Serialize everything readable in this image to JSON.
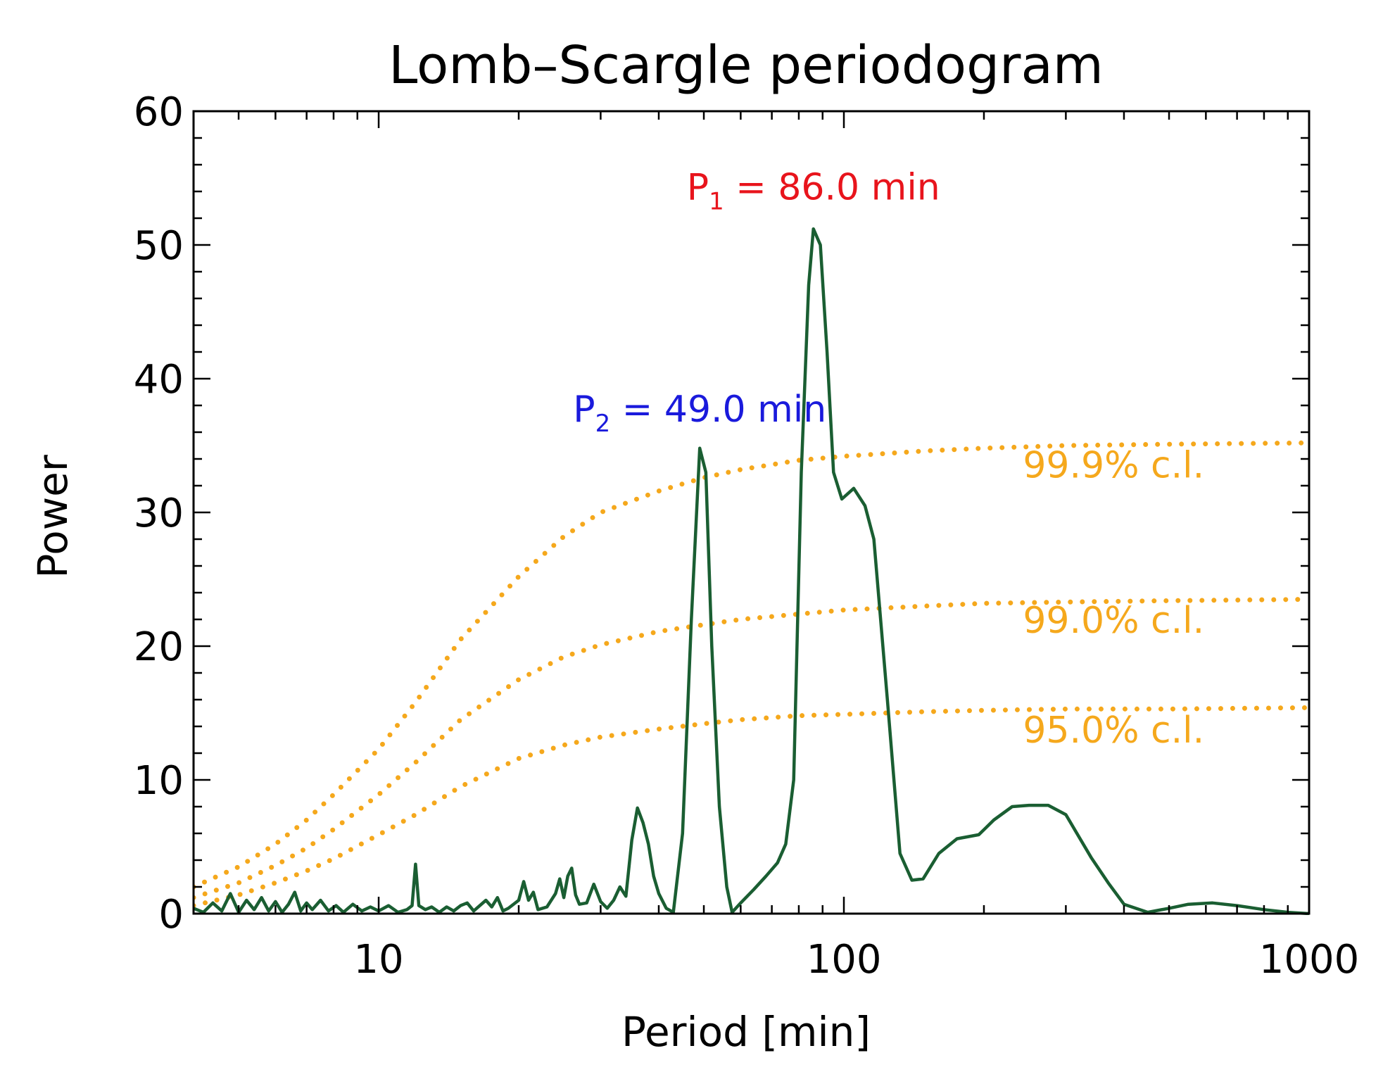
{
  "chart_data": {
    "type": "line",
    "title": "Lomb–Scargle periodogram",
    "xlabel": "Period [min]",
    "ylabel": "Power",
    "xscale": "log",
    "xlim": [
      4,
      1000
    ],
    "ylim": [
      0,
      60
    ],
    "grid": false,
    "x_ticks": [
      10,
      100,
      1000
    ],
    "x_tick_labels": [
      "10",
      "100",
      "1000"
    ],
    "y_ticks": [
      0,
      10,
      20,
      30,
      40,
      50,
      60
    ],
    "y_tick_labels": [
      "0",
      "10",
      "20",
      "30",
      "40",
      "50",
      "60"
    ],
    "colors": {
      "spectrum": "#1a5e32",
      "confidence": "#f5a81c",
      "p1": "#e8141c",
      "p2": "#1a1adc",
      "axis": "#000000"
    },
    "series": [
      {
        "style": "solid",
        "points": [
          [
            4.0,
            0.4
          ],
          [
            4.2,
            0.1
          ],
          [
            4.4,
            0.8
          ],
          [
            4.6,
            0.2
          ],
          [
            4.8,
            1.5
          ],
          [
            5.0,
            0.1
          ],
          [
            5.2,
            1.0
          ],
          [
            5.4,
            0.3
          ],
          [
            5.6,
            1.2
          ],
          [
            5.8,
            0.2
          ],
          [
            6.0,
            0.9
          ],
          [
            6.2,
            0.1
          ],
          [
            6.4,
            0.7
          ],
          [
            6.6,
            1.6
          ],
          [
            6.8,
            0.2
          ],
          [
            7.0,
            0.8
          ],
          [
            7.2,
            0.3
          ],
          [
            7.5,
            1.0
          ],
          [
            7.8,
            0.2
          ],
          [
            8.1,
            0.6
          ],
          [
            8.4,
            0.1
          ],
          [
            8.8,
            0.7
          ],
          [
            9.2,
            0.2
          ],
          [
            9.6,
            0.5
          ],
          [
            10.0,
            0.2
          ],
          [
            10.5,
            0.6
          ],
          [
            11.0,
            0.1
          ],
          [
            11.5,
            0.3
          ],
          [
            11.8,
            0.6
          ],
          [
            12.0,
            3.7
          ],
          [
            12.2,
            0.6
          ],
          [
            12.6,
            0.3
          ],
          [
            13.0,
            0.5
          ],
          [
            13.5,
            0.1
          ],
          [
            14.0,
            0.5
          ],
          [
            14.5,
            0.2
          ],
          [
            15.0,
            0.6
          ],
          [
            15.5,
            0.8
          ],
          [
            16.0,
            0.2
          ],
          [
            17.0,
            1.0
          ],
          [
            17.5,
            0.5
          ],
          [
            18.0,
            1.2
          ],
          [
            18.5,
            0.2
          ],
          [
            19.0,
            0.4
          ],
          [
            20.0,
            1.0
          ],
          [
            20.5,
            2.4
          ],
          [
            21.0,
            1.0
          ],
          [
            21.5,
            1.6
          ],
          [
            22.0,
            0.3
          ],
          [
            23.0,
            0.5
          ],
          [
            24.0,
            1.5
          ],
          [
            24.5,
            2.6
          ],
          [
            25.0,
            1.2
          ],
          [
            25.5,
            2.8
          ],
          [
            26.0,
            3.4
          ],
          [
            26.5,
            1.4
          ],
          [
            27.0,
            0.7
          ],
          [
            28.0,
            0.8
          ],
          [
            29.0,
            2.2
          ],
          [
            30.0,
            0.9
          ],
          [
            31.0,
            0.4
          ],
          [
            32.0,
            1.0
          ],
          [
            33.0,
            2.0
          ],
          [
            34.0,
            1.3
          ],
          [
            35.0,
            5.5
          ],
          [
            36.0,
            7.9
          ],
          [
            37.0,
            6.8
          ],
          [
            38.0,
            5.2
          ],
          [
            39.0,
            2.8
          ],
          [
            40.0,
            1.5
          ],
          [
            41.5,
            0.4
          ],
          [
            43.0,
            0.1
          ],
          [
            45.0,
            6.0
          ],
          [
            47.0,
            22.0
          ],
          [
            49.0,
            34.8
          ],
          [
            50.5,
            33.0
          ],
          [
            52.0,
            20.0
          ],
          [
            54.0,
            8.0
          ],
          [
            56.0,
            2.0
          ],
          [
            57.5,
            0.1
          ],
          [
            60.0,
            0.8
          ],
          [
            64.0,
            1.8
          ],
          [
            68.0,
            2.8
          ],
          [
            72.0,
            3.8
          ],
          [
            75.0,
            5.2
          ],
          [
            78.0,
            10.0
          ],
          [
            81.0,
            33.0
          ],
          [
            84.0,
            47.0
          ],
          [
            86.0,
            51.2
          ],
          [
            89.0,
            50.0
          ],
          [
            92.0,
            42.0
          ],
          [
            95.0,
            33.0
          ],
          [
            99.0,
            31.0
          ],
          [
            105.0,
            31.8
          ],
          [
            111.0,
            30.5
          ],
          [
            116.0,
            28.0
          ],
          [
            124.0,
            16.0
          ],
          [
            132.0,
            4.5
          ],
          [
            140.0,
            2.5
          ],
          [
            148.0,
            2.6
          ],
          [
            160.0,
            4.5
          ],
          [
            175.0,
            5.6
          ],
          [
            195.0,
            5.9
          ],
          [
            210.0,
            7.0
          ],
          [
            230.0,
            8.0
          ],
          [
            250.0,
            8.1
          ],
          [
            275.0,
            8.1
          ],
          [
            300.0,
            7.4
          ],
          [
            340.0,
            4.2
          ],
          [
            370.0,
            2.3
          ],
          [
            400.0,
            0.7
          ],
          [
            450.0,
            0.1
          ],
          [
            500.0,
            0.4
          ],
          [
            550.0,
            0.7
          ],
          [
            620.0,
            0.8
          ],
          [
            700.0,
            0.6
          ],
          [
            800.0,
            0.3
          ],
          [
            900.0,
            0.1
          ],
          [
            1000.0,
            0.0
          ]
        ]
      },
      {
        "name": "99.9% c.l.",
        "style": "dotted",
        "points": [
          [
            4.0,
            2.0
          ],
          [
            5.0,
            3.5
          ],
          [
            6.0,
            5.2
          ],
          [
            7.0,
            7.0
          ],
          [
            8.0,
            8.9
          ],
          [
            10.0,
            12.3
          ],
          [
            12.0,
            15.8
          ],
          [
            15.0,
            20.5
          ],
          [
            20.0,
            25.2
          ],
          [
            25.0,
            28.2
          ],
          [
            30.0,
            30.0
          ],
          [
            40.0,
            31.6
          ],
          [
            50.0,
            32.6
          ],
          [
            60.0,
            33.2
          ],
          [
            80.0,
            33.9
          ],
          [
            100.0,
            34.2
          ],
          [
            150.0,
            34.6
          ],
          [
            200.0,
            34.8
          ],
          [
            300.0,
            35.0
          ],
          [
            500.0,
            35.1
          ],
          [
            1000.0,
            35.2
          ]
        ]
      },
      {
        "name": "99.0% c.l.",
        "style": "dotted",
        "points": [
          [
            4.0,
            1.2
          ],
          [
            5.0,
            2.3
          ],
          [
            6.0,
            3.6
          ],
          [
            7.0,
            4.9
          ],
          [
            8.0,
            6.3
          ],
          [
            10.0,
            8.9
          ],
          [
            12.0,
            11.3
          ],
          [
            15.0,
            14.5
          ],
          [
            20.0,
            17.5
          ],
          [
            25.0,
            19.2
          ],
          [
            30.0,
            20.1
          ],
          [
            40.0,
            21.1
          ],
          [
            50.0,
            21.6
          ],
          [
            60.0,
            22.0
          ],
          [
            80.0,
            22.4
          ],
          [
            100.0,
            22.7
          ],
          [
            150.0,
            23.0
          ],
          [
            200.0,
            23.2
          ],
          [
            300.0,
            23.3
          ],
          [
            500.0,
            23.4
          ],
          [
            1000.0,
            23.5
          ]
        ]
      },
      {
        "name": "95.0% c.l.",
        "style": "dotted",
        "points": [
          [
            4.0,
            0.6
          ],
          [
            5.0,
            1.4
          ],
          [
            6.0,
            2.3
          ],
          [
            7.0,
            3.2
          ],
          [
            8.0,
            4.1
          ],
          [
            10.0,
            5.9
          ],
          [
            12.0,
            7.4
          ],
          [
            15.0,
            9.5
          ],
          [
            20.0,
            11.6
          ],
          [
            25.0,
            12.6
          ],
          [
            30.0,
            13.2
          ],
          [
            40.0,
            13.8
          ],
          [
            50.0,
            14.2
          ],
          [
            60.0,
            14.5
          ],
          [
            80.0,
            14.8
          ],
          [
            100.0,
            14.9
          ],
          [
            150.0,
            15.1
          ],
          [
            200.0,
            15.2
          ],
          [
            300.0,
            15.3
          ],
          [
            500.0,
            15.3
          ],
          [
            1000.0,
            15.4
          ]
        ]
      }
    ],
    "confidence_labels": [
      {
        "text": "99.9% c.l.",
        "x": 380,
        "y": 32.6
      },
      {
        "text": "99.0% c.l.",
        "x": 380,
        "y": 21.0
      },
      {
        "text": "95.0% c.l.",
        "x": 380,
        "y": 12.8
      }
    ],
    "annotations": [
      {
        "prefix": "P",
        "sub": "1",
        "text": " = 86.0 min",
        "x": 86,
        "y": 53.4,
        "color": "#e8141c"
      },
      {
        "prefix": "P",
        "sub": "2",
        "text": " = 49.0 min",
        "x": 49,
        "y": 36.8,
        "color": "#1a1adc"
      }
    ]
  }
}
